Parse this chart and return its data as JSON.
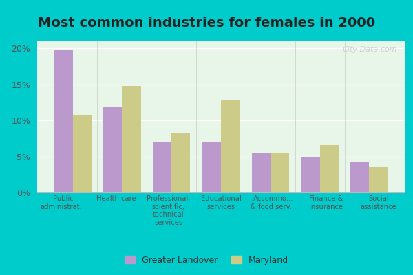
{
  "title": "Most common industries for females in 2000",
  "categories": [
    "Public\nadministrat...",
    "Health care",
    "Professional,\nscientific,\ntechnical\nservices",
    "Educational\nservices",
    "Accommo...\n& food serv...",
    "Finance &\ninsurance",
    "Social\nassistance"
  ],
  "greater_landover": [
    19.8,
    11.8,
    7.1,
    7.0,
    5.4,
    4.9,
    4.2
  ],
  "maryland": [
    10.7,
    14.8,
    8.3,
    12.8,
    5.5,
    6.6,
    3.5
  ],
  "color_landover": "#bb99cc",
  "color_maryland": "#cccc88",
  "ylim": [
    0,
    21
  ],
  "yticks": [
    0,
    5,
    10,
    15,
    20
  ],
  "ytick_labels": [
    "0%",
    "5%",
    "10%",
    "15%",
    "20%"
  ],
  "background_color": "#e8f5e9",
  "outer_background": "#00cccc",
  "watermark": "City-Data.com",
  "legend_landover": "Greater Landover",
  "legend_maryland": "Maryland",
  "title_fontsize": 14,
  "bar_width": 0.38,
  "grid_color": "#ffffff",
  "separator_color": "#bbbbbb"
}
